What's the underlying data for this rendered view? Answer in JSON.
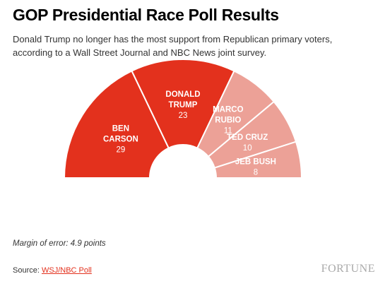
{
  "header": {
    "title": "GOP Presidential Race Poll Results",
    "subtitle": "Donald Trump no longer has the most support from Republican primary voters, according to a Wall Street Journal and NBC News joint survey."
  },
  "chart_data": {
    "type": "pie",
    "variant": "half-donut",
    "unit": "",
    "slices": [
      {
        "name_lines": [
          "BEN",
          "CARSON"
        ],
        "value": 29,
        "color": "#e3311d"
      },
      {
        "name_lines": [
          "DONALD",
          "TRUMP"
        ],
        "value": 23,
        "color": "#e3311d"
      },
      {
        "name_lines": [
          "MARCO",
          "RUBIO"
        ],
        "value": 11,
        "color": "#eca197"
      },
      {
        "name_lines": [
          "TED CRUZ"
        ],
        "value": 10,
        "color": "#eca197"
      },
      {
        "name_lines": [
          "JEB BUSH"
        ],
        "value": 8,
        "color": "#eca197"
      }
    ]
  },
  "footer": {
    "note": "Margin of error: 4.9 points",
    "source_prefix": "Source: ",
    "source_link": "WSJ/NBC Poll",
    "brand": "FORTUNE"
  }
}
